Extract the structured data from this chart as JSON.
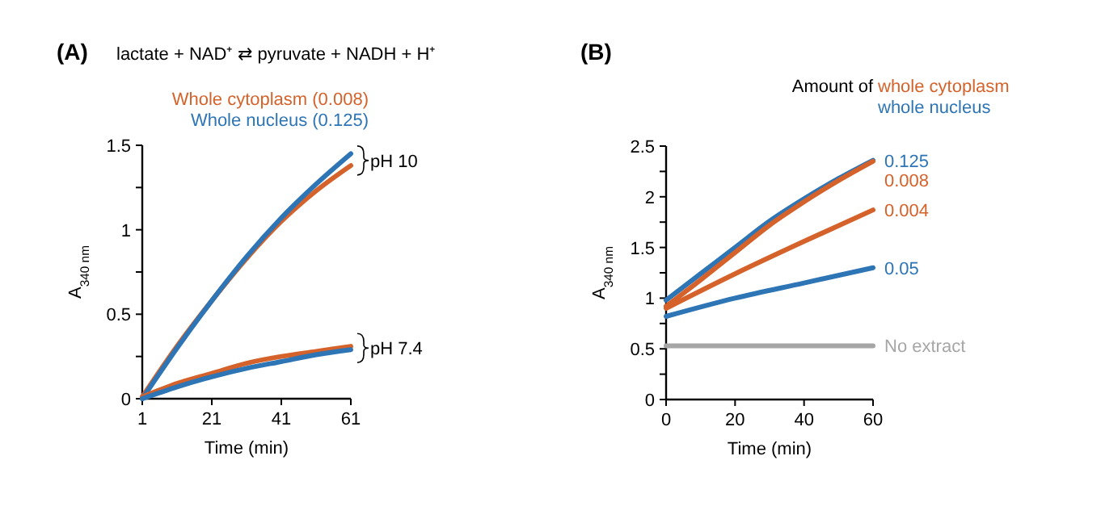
{
  "chart_data": [
    {
      "type": "line",
      "title": "(A)",
      "subtitle": "lactate + NAD⁺ ⇄ pyruvate + NADH + H⁺",
      "xlabel": "Time (min)",
      "ylabel": "A$_{340 nm}$",
      "xlim": [
        1,
        61
      ],
      "xticks": [
        1,
        21,
        41,
        61
      ],
      "ylim": [
        0,
        1.5
      ],
      "yticks": [
        0,
        {
          "value": 0.25,
          "label": null
        },
        0.5,
        {
          "value": 0.75,
          "label": null
        },
        1,
        {
          "value": 1.25,
          "label": null
        },
        1.5
      ],
      "legend": "top",
      "grid": false,
      "series": [
        {
          "name": "Whole cytoplasm (0.008)",
          "color": "#d4622a",
          "x": [
            1,
            11,
            21,
            31,
            41,
            51,
            61
          ],
          "values": [
            0.01,
            0.31,
            0.58,
            0.83,
            1.05,
            1.23,
            1.38
          ]
        },
        {
          "name": "Whole nucleus (0.125)",
          "color": "#2e75b6",
          "x": [
            1,
            11,
            21,
            31,
            41,
            51,
            61
          ],
          "values": [
            0,
            0.3,
            0.58,
            0.84,
            1.07,
            1.27,
            1.45
          ]
        },
        {
          "color": "#d4622a",
          "x": [
            1,
            11,
            21,
            31,
            41,
            51,
            61
          ],
          "values": [
            0.01,
            0.09,
            0.15,
            0.21,
            0.25,
            0.28,
            0.31
          ]
        },
        {
          "color": "#2e75b6",
          "x": [
            1,
            11,
            21,
            31,
            41,
            51,
            61
          ],
          "values": [
            0,
            0.07,
            0.13,
            0.18,
            0.22,
            0.26,
            0.29
          ]
        }
      ],
      "annotations": [
        {
          "text": "pH 10",
          "x": 61,
          "y": 1.41
        },
        {
          "text": "pH 7.4",
          "x": 61,
          "y": 0.3
        }
      ]
    },
    {
      "type": "line",
      "title": "(B)",
      "legend_title": "Amount of",
      "xlabel": "Time (min)",
      "ylabel": "A$_{340 nm}$",
      "xlim": [
        0,
        60
      ],
      "xticks": [
        0,
        20,
        40,
        60
      ],
      "ylim": [
        0,
        2.5
      ],
      "yticks": [
        0,
        {
          "value": 0.25,
          "label": null
        },
        0.5,
        {
          "value": 0.75,
          "label": null
        },
        1,
        {
          "value": 1.25,
          "label": null
        },
        1.5,
        {
          "value": 1.75,
          "label": null
        },
        2,
        {
          "value": 2.25,
          "label": null
        },
        2.5
      ],
      "grid": false,
      "series": [
        {
          "name": "0.125",
          "color": "#2e75b6",
          "x": [
            0,
            10,
            20,
            30,
            40,
            50,
            60
          ],
          "values": [
            0.98,
            1.24,
            1.5,
            1.76,
            1.98,
            2.18,
            2.36
          ]
        },
        {
          "name": "0.008",
          "color": "#d4622a",
          "x": [
            0,
            10,
            20,
            30,
            40,
            50,
            60
          ],
          "values": [
            0.92,
            1.18,
            1.45,
            1.72,
            1.95,
            2.16,
            2.35
          ]
        },
        {
          "name": "0.004",
          "color": "#d4622a",
          "x": [
            0,
            20,
            40,
            60
          ],
          "values": [
            0.9,
            1.24,
            1.56,
            1.87
          ]
        },
        {
          "name": "0.05",
          "color": "#2e75b6",
          "x": [
            0,
            20,
            40,
            60
          ],
          "values": [
            0.82,
            1.0,
            1.15,
            1.3
          ]
        },
        {
          "name": "No extract",
          "color": "#a6a6a6",
          "x": [
            0,
            60
          ],
          "values": [
            0.53,
            0.53
          ]
        }
      ],
      "annotations": [
        "whole cytoplasm",
        "whole nucleus"
      ]
    }
  ]
}
